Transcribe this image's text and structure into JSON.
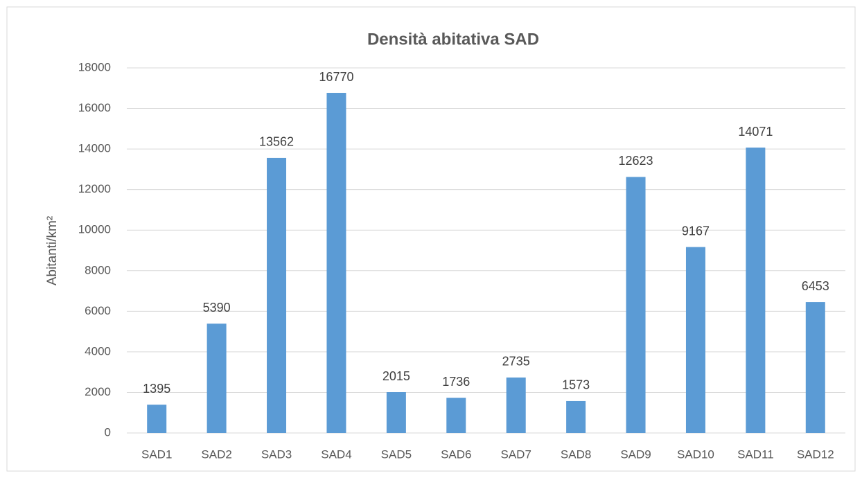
{
  "chart_data": {
    "type": "bar",
    "title": "Densità abitativa SAD",
    "ylabel": "Abitanti/km²",
    "categories": [
      "SAD1",
      "SAD2",
      "SAD3",
      "SAD4",
      "SAD5",
      "SAD6",
      "SAD7",
      "SAD8",
      "SAD9",
      "SAD10",
      "SAD11",
      "SAD12"
    ],
    "values": [
      1395,
      5390,
      13562,
      16770,
      2015,
      1736,
      2735,
      1573,
      12623,
      9167,
      14071,
      6453
    ],
    "color": "#5b9bd5",
    "ylim": [
      0,
      18000
    ],
    "yticks": [
      0,
      2000,
      4000,
      6000,
      8000,
      10000,
      12000,
      14000,
      16000,
      18000
    ],
    "grid": true
  }
}
